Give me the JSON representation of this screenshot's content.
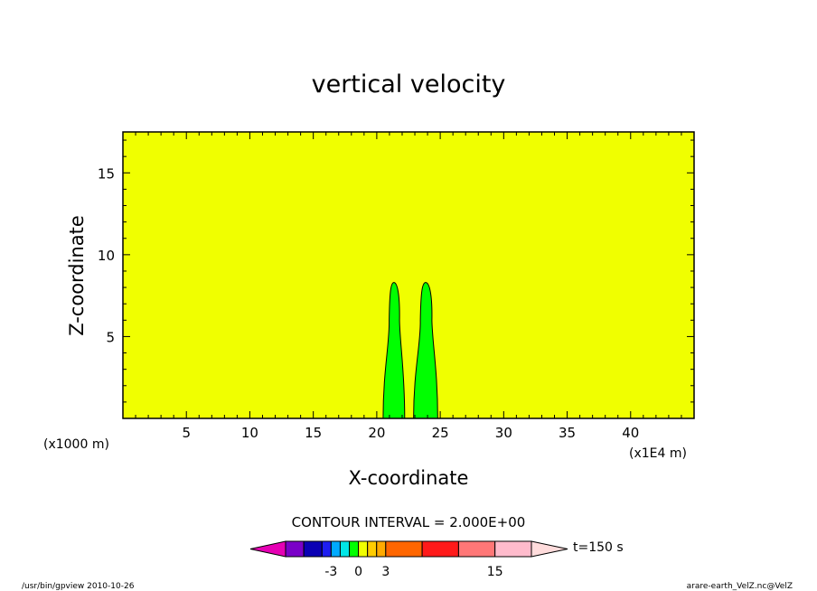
{
  "chart_data": {
    "type": "contour",
    "title": "vertical velocity",
    "xlabel": "X-coordinate",
    "ylabel": "Z-coordinate",
    "x_unit_note": "(x1000 m)",
    "x_scale_note": "(x1E4 m)",
    "xlim": [
      0,
      45
    ],
    "ylim": [
      0,
      17.5
    ],
    "xticks": [
      5,
      10,
      15,
      20,
      25,
      30,
      35,
      40
    ],
    "yticks": [
      5,
      10,
      15
    ],
    "background_level_color": "#f0ff00",
    "features": [
      {
        "name": "updraft-left",
        "color": "#00ff00",
        "x_range": [
          20.5,
          22.2
        ],
        "z_top": 8.3
      },
      {
        "name": "updraft-right",
        "color": "#00ff00",
        "x_range": [
          22.9,
          24.8
        ],
        "z_top": 8.3
      }
    ],
    "contour_interval_label": "CONTOUR INTERVAL = 2.000E+00",
    "colorbar": {
      "colors": [
        "#e600b4",
        "#7a00c8",
        "#0a00b4",
        "#1e1ef0",
        "#00aaff",
        "#00e6e6",
        "#00ff00",
        "#f0ff00",
        "#ffcc00",
        "#ffaa00",
        "#ff6600",
        "#ff1a1a",
        "#ff7777",
        "#ffbbcc",
        "#ffdcdc"
      ],
      "tick_labels": [
        "-3",
        "0",
        "3",
        "15"
      ]
    },
    "time_label": "t=150 s"
  },
  "footer": {
    "left": "/usr/bin/gpview   2010-10-26",
    "right": "arare-earth_VelZ.nc@VelZ"
  }
}
